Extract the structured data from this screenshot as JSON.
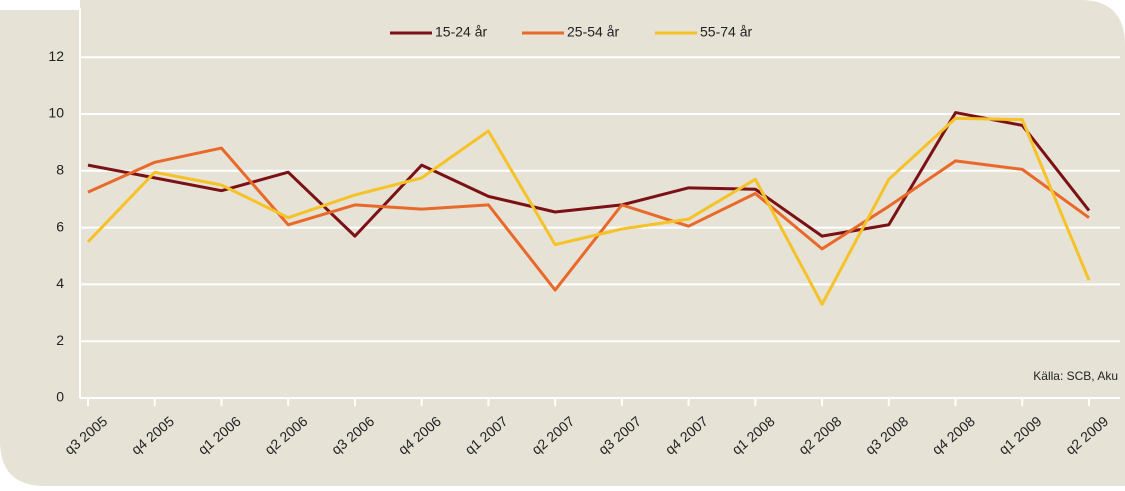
{
  "chart_data": {
    "type": "line",
    "categories": [
      "q3 2005",
      "q4 2005",
      "q1 2006",
      "q2 2006",
      "q3 2006",
      "q4 2006",
      "q1 2007",
      "q2 2007",
      "q3 2007",
      "q4 2007",
      "q1 2008",
      "q2 2008",
      "q3 2008",
      "q4 2008",
      "q1 2009",
      "q2 2009"
    ],
    "series": [
      {
        "name": "15-24 år",
        "color": "#7b1015",
        "values": [
          8.2,
          7.75,
          7.3,
          7.95,
          5.7,
          8.2,
          7.1,
          6.55,
          6.8,
          7.4,
          7.35,
          5.7,
          6.1,
          10.05,
          9.6,
          6.6
        ]
      },
      {
        "name": "25-54 år",
        "color": "#e8692a",
        "values": [
          7.25,
          8.3,
          8.8,
          6.1,
          6.8,
          6.65,
          6.8,
          3.8,
          6.8,
          6.05,
          7.2,
          5.25,
          6.75,
          8.35,
          8.05,
          6.35
        ]
      },
      {
        "name": "55-74 år",
        "color": "#f5c228",
        "values": [
          5.5,
          7.95,
          7.5,
          6.35,
          7.15,
          7.75,
          9.4,
          5.4,
          5.95,
          6.3,
          7.7,
          3.3,
          7.7,
          9.85,
          9.8,
          4.15
        ]
      }
    ],
    "ylim": [
      0,
      12.9
    ],
    "yticks": [
      0,
      2,
      4,
      6,
      8,
      10,
      12
    ],
    "grid": true,
    "legend": "top",
    "source": "Källa: SCB, Aku"
  }
}
